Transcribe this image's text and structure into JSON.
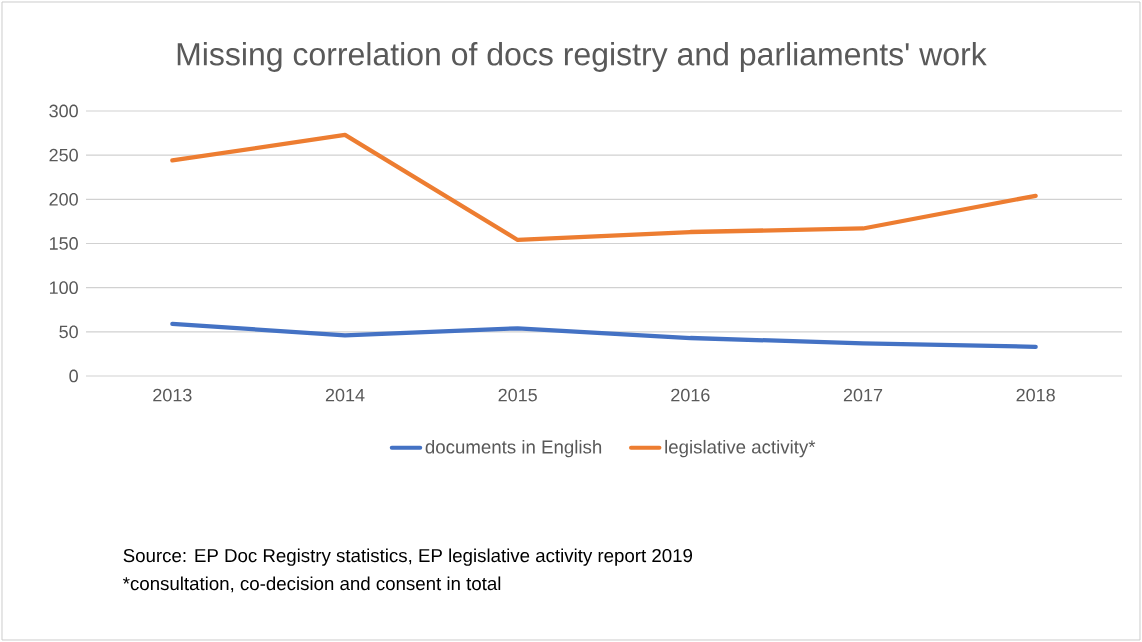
{
  "chart_data": {
    "type": "line",
    "title": "Missing correlation of docs registry and parliaments' work",
    "categories": [
      "2013",
      "2014",
      "2015",
      "2016",
      "2017",
      "2018"
    ],
    "series": [
      {
        "name": "documents in English",
        "color": "#4472c4",
        "values": [
          59,
          46,
          54,
          43,
          37,
          33
        ]
      },
      {
        "name": "legislative activity*",
        "color": "#ed7d31",
        "values": [
          244,
          273,
          154,
          163,
          167,
          204
        ]
      }
    ],
    "ylim": [
      0,
      300
    ],
    "yticks": [
      0,
      50,
      100,
      150,
      200,
      250,
      300
    ],
    "grid": "y",
    "legend": "bottom",
    "annotations": [
      "Source: EP Doc Registry statistics, EP legislative activity report 2019",
      "*consultation, co-decision and consent in total"
    ]
  }
}
